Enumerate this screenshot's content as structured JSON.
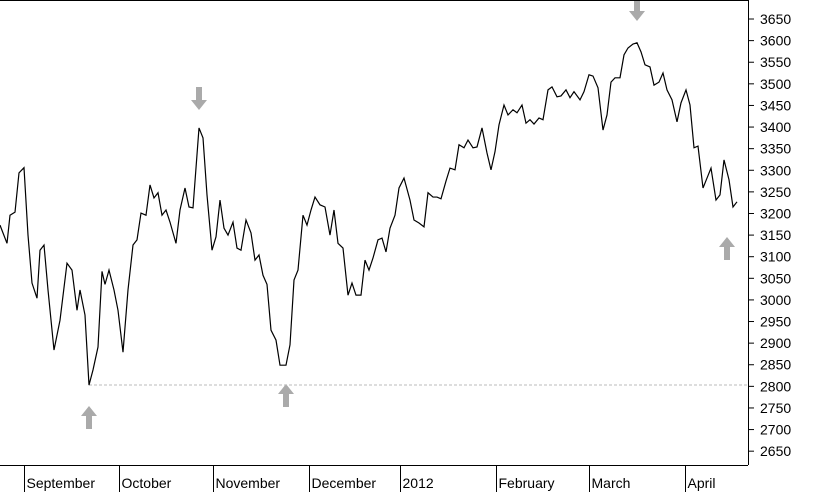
{
  "chart_data": {
    "type": "line",
    "x": [
      0,
      1.75,
      2.5,
      3.75,
      4.75,
      6,
      7,
      8,
      9.25,
      10,
      11,
      12,
      13.5,
      15,
      16.75,
      18,
      19.25,
      20,
      21.25,
      22.25,
      23.25,
      24.5,
      25.5,
      26.25,
      27.25,
      28.5,
      29.5,
      30.75,
      32,
      33.25,
      34.25,
      35.25,
      36.5,
      37.5,
      38.5,
      39.5,
      40.5,
      41.5,
      42.5,
      44,
      45,
      46.25,
      47.25,
      48.25,
      49.75,
      50.75,
      51.75,
      53,
      54,
      55,
      56,
      57,
      58.25,
      59.25,
      60.25,
      61.5,
      62.75,
      63.75,
      64.75,
      65.75,
      66.75,
      67.75,
      69,
      70,
      71.5,
      72.5,
      73.5,
      74.5,
      75.75,
      76.75,
      77.75,
      78.75,
      80,
      81.25,
      82.5,
      83.5,
      84.5,
      85.75,
      87,
      88,
      89,
      90.25,
      91.25,
      92.25,
      93.25,
      94.5,
      95.5,
      96.5,
      97.5,
      98.75,
      99.75,
      101,
      102.5,
      103.5,
      104.75,
      106,
      107,
      108.25,
      109.25,
      110.25,
      111.5,
      112.5,
      113.75,
      114.75,
      116,
      117,
      118.25,
      119.25,
      120.5,
      121.75,
      122.75,
      123.75,
      124.75,
      126,
      127,
      128.25,
      129.25,
      130.5,
      131.5,
      132.5,
      133.5,
      134.75,
      135.75,
      137,
      138,
      139.25,
      140.25,
      141.5,
      142.5,
      143.5,
      145,
      146,
      147.25,
      148.25,
      149.5,
      150.75,
      151.75,
      152.75,
      153.75,
      155,
      156,
      157,
      158.25,
      159.25,
      160.25,
      161.25,
      162.5,
      163.5,
      164.75,
      165.75,
      166.75,
      168,
      169.25,
      170.25,
      171.5,
      172.5,
      173.5,
      174.5,
      175.75,
      176.75,
      177.75,
      179,
      180,
      181,
      182.25,
      183.25,
      184.25
    ],
    "series": [
      {
        "color": "#000000",
        "values": [
          3173,
          3131,
          3196,
          3203,
          3294,
          3306,
          3150,
          3039,
          3004,
          3115,
          3127,
          3023,
          2884,
          2953,
          3085,
          3069,
          2976,
          3023,
          2965,
          2803,
          2838,
          2891,
          3066,
          3036,
          3069,
          3023,
          2976,
          2879,
          3023,
          3127,
          3139,
          3201,
          3196,
          3266,
          3236,
          3248,
          3196,
          3208,
          3180,
          3131,
          3208,
          3259,
          3215,
          3213,
          3398,
          3375,
          3243,
          3115,
          3146,
          3231,
          3166,
          3150,
          3180,
          3120,
          3115,
          3185,
          3155,
          3092,
          3104,
          3057,
          3036,
          2930,
          2907,
          2849,
          2849,
          2896,
          3046,
          3069,
          3196,
          3173,
          3208,
          3238,
          3220,
          3215,
          3150,
          3208,
          3131,
          3120,
          3011,
          3039,
          3011,
          3011,
          3092,
          3069,
          3097,
          3139,
          3143,
          3111,
          3166,
          3196,
          3259,
          3282,
          3231,
          3185,
          3178,
          3169,
          3248,
          3238,
          3238,
          3234,
          3275,
          3305,
          3301,
          3359,
          3352,
          3370,
          3352,
          3354,
          3398,
          3340,
          3301,
          3343,
          3405,
          3451,
          3428,
          3440,
          3433,
          3451,
          3409,
          3417,
          3407,
          3421,
          3417,
          3486,
          3493,
          3470,
          3472,
          3486,
          3468,
          3482,
          3463,
          3482,
          3521,
          3518,
          3491,
          3393,
          3428,
          3504,
          3514,
          3514,
          3567,
          3583,
          3592,
          3595,
          3574,
          3544,
          3539,
          3497,
          3504,
          3525,
          3486,
          3463,
          3412,
          3456,
          3486,
          3451,
          3352,
          3356,
          3259,
          3282,
          3305,
          3231,
          3243,
          3324,
          3278,
          3215,
          3227
        ]
      }
    ],
    "xlim": [
      0,
      187
    ],
    "xticks": [
      {
        "value": 6,
        "label": "September"
      },
      {
        "value": 29.75,
        "label": "October"
      },
      {
        "value": 53.25,
        "label": "November"
      },
      {
        "value": 77.25,
        "label": "December"
      },
      {
        "value": 100,
        "label": "2012"
      },
      {
        "value": 124,
        "label": "February"
      },
      {
        "value": 147.25,
        "label": "March"
      },
      {
        "value": 171.25,
        "label": "April"
      }
    ],
    "ylim": [
      2618,
      3694
    ],
    "yticks": [
      2650,
      2700,
      2750,
      2800,
      2850,
      2900,
      2950,
      3000,
      3050,
      3100,
      3150,
      3200,
      3250,
      3300,
      3350,
      3400,
      3450,
      3500,
      3550,
      3600,
      3650
    ],
    "reference_line": 2803
  }
}
